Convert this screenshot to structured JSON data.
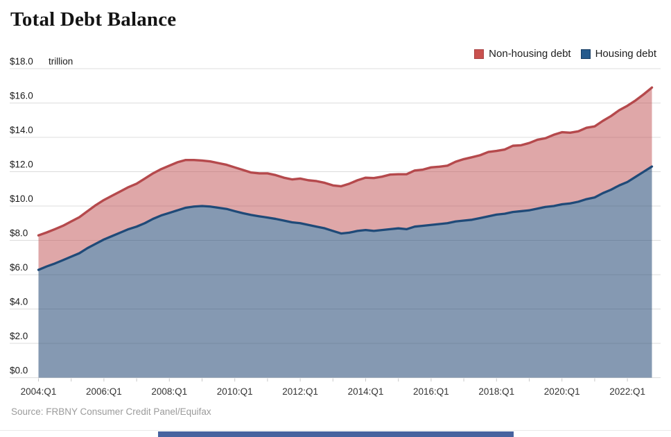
{
  "header": {
    "title": "Total Debt Balance"
  },
  "legend": {
    "items": [
      {
        "label": "Non-housing debt",
        "color": "#c9514e",
        "border": "#a94446"
      },
      {
        "label": "Housing debt",
        "color": "#255a8c",
        "border": "#163c63"
      }
    ]
  },
  "y_axis": {
    "unit": "trillion",
    "ticks": [
      {
        "value": 18,
        "label": "$18.0"
      },
      {
        "value": 16,
        "label": "$16.0"
      },
      {
        "value": 14,
        "label": "$14.0"
      },
      {
        "value": 12,
        "label": "$12.0"
      },
      {
        "value": 10,
        "label": "$10.0"
      },
      {
        "value": 8,
        "label": "$8.0"
      },
      {
        "value": 6,
        "label": "$6.0"
      },
      {
        "value": 4,
        "label": "$4.0"
      },
      {
        "value": 2,
        "label": "$2.0"
      },
      {
        "value": 0,
        "label": "$0.0"
      }
    ]
  },
  "x_axis": {
    "ticks": [
      {
        "q": 0,
        "label": "2004:Q1"
      },
      {
        "q": 8,
        "label": "2006:Q1"
      },
      {
        "q": 16,
        "label": "2008:Q1"
      },
      {
        "q": 24,
        "label": "2010:Q1"
      },
      {
        "q": 32,
        "label": "2012:Q1"
      },
      {
        "q": 40,
        "label": "2014:Q1"
      },
      {
        "q": 48,
        "label": "2016:Q1"
      },
      {
        "q": 56,
        "label": "2018:Q1"
      },
      {
        "q": 64,
        "label": "2020:Q1"
      },
      {
        "q": 72,
        "label": "2022:Q1"
      }
    ],
    "minor_tick_every_quarters": 4
  },
  "footer": {
    "source": "Source: FRBNY Consumer Credit Panel/Equifax"
  },
  "chart_data": {
    "type": "area",
    "stacked": true,
    "title": "Total Debt Balance",
    "ylabel": "trillion",
    "ylim": [
      0,
      18
    ],
    "grid": true,
    "legend_position": "top-right",
    "x_start": "2004:Q1",
    "x_end": "2022:Q4",
    "x_freq": "quarterly",
    "x_tick_labels": [
      "2004:Q1",
      "2006:Q1",
      "2008:Q1",
      "2010:Q1",
      "2012:Q1",
      "2014:Q1",
      "2016:Q1",
      "2018:Q1",
      "2020:Q1",
      "2022:Q1"
    ],
    "series": [
      {
        "name": "Housing debt",
        "stroke": "#1f4a78",
        "fill": "rgba(40,75,120,0.57)",
        "values": [
          6.28,
          6.48,
          6.65,
          6.85,
          7.05,
          7.25,
          7.55,
          7.8,
          8.05,
          8.25,
          8.45,
          8.65,
          8.8,
          9.0,
          9.25,
          9.45,
          9.6,
          9.75,
          9.9,
          9.97,
          10.0,
          9.97,
          9.9,
          9.83,
          9.7,
          9.58,
          9.48,
          9.4,
          9.33,
          9.25,
          9.15,
          9.05,
          9.0,
          8.9,
          8.8,
          8.7,
          8.55,
          8.4,
          8.45,
          8.55,
          8.6,
          8.55,
          8.6,
          8.65,
          8.7,
          8.65,
          8.8,
          8.85,
          8.9,
          8.95,
          9.0,
          9.1,
          9.15,
          9.2,
          9.3,
          9.4,
          9.5,
          9.55,
          9.65,
          9.7,
          9.75,
          9.85,
          9.95,
          10.0,
          10.1,
          10.15,
          10.25,
          10.4,
          10.5,
          10.75,
          10.95,
          11.2,
          11.4,
          11.7,
          12.0,
          12.3
        ]
      },
      {
        "name": "Non-housing debt",
        "stroke": "#b5494c",
        "fill": "rgba(192,80,82,0.50)",
        "values": [
          2.01,
          1.98,
          2.0,
          2.0,
          2.05,
          2.1,
          2.15,
          2.25,
          2.3,
          2.35,
          2.4,
          2.45,
          2.5,
          2.6,
          2.65,
          2.7,
          2.75,
          2.8,
          2.78,
          2.71,
          2.65,
          2.63,
          2.6,
          2.57,
          2.55,
          2.52,
          2.47,
          2.5,
          2.57,
          2.55,
          2.5,
          2.5,
          2.6,
          2.6,
          2.65,
          2.65,
          2.65,
          2.75,
          2.85,
          2.95,
          3.05,
          3.08,
          3.11,
          3.18,
          3.15,
          3.2,
          3.27,
          3.27,
          3.35,
          3.34,
          3.35,
          3.48,
          3.58,
          3.64,
          3.66,
          3.75,
          3.71,
          3.74,
          3.86,
          3.84,
          3.92,
          4.01,
          4.0,
          4.15,
          4.2,
          4.12,
          4.1,
          4.16,
          4.14,
          4.21,
          4.29,
          4.38,
          4.44,
          4.45,
          4.51,
          4.6
        ]
      }
    ],
    "total_debt": [
      8.29,
      8.46,
      8.65,
      8.85,
      9.1,
      9.35,
      9.7,
      10.05,
      10.35,
      10.6,
      10.85,
      11.1,
      11.3,
      11.6,
      11.9,
      12.15,
      12.35,
      12.55,
      12.68,
      12.68,
      12.65,
      12.6,
      12.5,
      12.4,
      12.25,
      12.1,
      11.95,
      11.9,
      11.9,
      11.8,
      11.65,
      11.55,
      11.6,
      11.5,
      11.45,
      11.35,
      11.2,
      11.15,
      11.3,
      11.5,
      11.65,
      11.63,
      11.71,
      11.83,
      11.85,
      11.85,
      12.07,
      12.12,
      12.25,
      12.29,
      12.35,
      12.58,
      12.73,
      12.84,
      12.96,
      13.15,
      13.21,
      13.29,
      13.51,
      13.54,
      13.67,
      13.86,
      13.95,
      14.15,
      14.3,
      14.27,
      14.35,
      14.56,
      14.64,
      14.96,
      15.24,
      15.58,
      15.84,
      16.15,
      16.51,
      16.9
    ]
  }
}
